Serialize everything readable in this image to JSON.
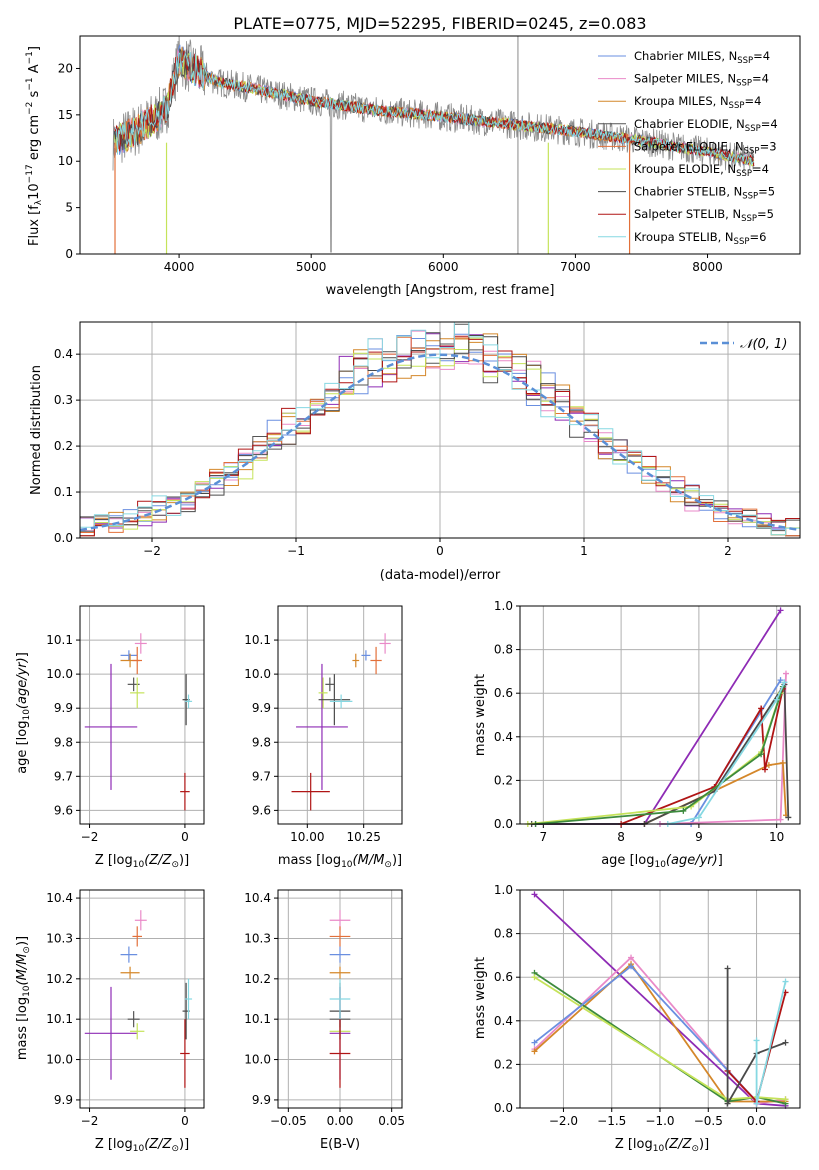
{
  "colors": {
    "chabrier_miles": "#6a8fe0",
    "salpeter_miles": "#e98ac8",
    "kroupa_miles": "#d4872a",
    "chabrier_elodie": "#555555",
    "salpeter_elodie": "#e2703a",
    "kroupa_elodie": "#c5e35a",
    "chabrier_stelib": "#4a4a4a",
    "salpeter_stelib": "#b01515",
    "kroupa_stelib": "#86d8e2",
    "purple": "#8e2bb5",
    "green": "#3d8a3d",
    "gray_spec": "#8a8a8a",
    "normal": "#5a8fd6",
    "grid": "#b0b0b0"
  },
  "chart_data": [
    {
      "type": "line",
      "title": "PLATE=0775, MJD=52295, FIBERID=0245, z=0.083",
      "xlabel": "wavelength [Angstrom, rest frame]",
      "ylabel": "Flux [f_λ10^-17 erg cm^-2 s^-1 A^-1]",
      "xlim": [
        3250,
        8700
      ],
      "ylim": [
        0,
        23.5
      ],
      "xticks": [
        "4000",
        "5000",
        "6000",
        "7000",
        "8000"
      ],
      "yticks": [
        "0",
        "5",
        "10",
        "15",
        "20"
      ],
      "continuum_x": [
        3500,
        3700,
        3900,
        4000,
        4100,
        4300,
        4500,
        5000,
        5500,
        6000,
        6500,
        7000,
        7500,
        8000,
        8350
      ],
      "continuum_y": [
        12,
        13.5,
        15.5,
        21,
        20,
        18.5,
        18,
        16.5,
        15.5,
        14.8,
        14,
        13.2,
        12.2,
        11,
        10
      ],
      "legend": [
        {
          "label": "Chabrier MILES, N",
          "sub": "SSP",
          "tail": "=4",
          "color": "chabrier_miles"
        },
        {
          "label": "Salpeter MILES, N",
          "sub": "SSP",
          "tail": "=4",
          "color": "salpeter_miles"
        },
        {
          "label": "Kroupa MILES, N",
          "sub": "SSP",
          "tail": "=4",
          "color": "kroupa_miles"
        },
        {
          "label": "Chabrier ELODIE, N",
          "sub": "SSP",
          "tail": "=4",
          "color": "chabrier_elodie"
        },
        {
          "label": "Salpeter ELODIE, N",
          "sub": "SSP",
          "tail": "=3",
          "color": "salpeter_elodie"
        },
        {
          "label": "Kroupa ELODIE, N",
          "sub": "SSP",
          "tail": "=4",
          "color": "kroupa_elodie"
        },
        {
          "label": "Chabrier STELIB, N",
          "sub": "SSP",
          "tail": "=5",
          "color": "chabrier_stelib"
        },
        {
          "label": "Salpeter STELIB, N",
          "sub": "SSP",
          "tail": "=5",
          "color": "salpeter_stelib"
        },
        {
          "label": "Kroupa STELIB, N",
          "sub": "SSP",
          "tail": "=6",
          "color": "kroupa_stelib"
        }
      ]
    },
    {
      "type": "histogram",
      "xlabel": "(data-model)/error",
      "ylabel": "Normed distribution",
      "xlim": [
        -2.5,
        2.5
      ],
      "ylim": [
        0,
        0.47
      ],
      "xticks": [
        "−2",
        "−1",
        "0",
        "1",
        "2"
      ],
      "yticks": [
        "0.0",
        "0.1",
        "0.2",
        "0.3",
        "0.4"
      ],
      "legend": "𝒩(0, 1)",
      "bin_width": 0.1
    },
    {
      "type": "scatter",
      "xlabel": "Z [log10(Z/Z⊙)]",
      "ylabel": "age  [log10(age/yr)]",
      "xlim": [
        -2.2,
        0.4
      ],
      "ylim": [
        9.56,
        10.2
      ],
      "xticks": [
        "−2",
        "0"
      ],
      "yticks": [
        "9.6",
        "9.7",
        "9.8",
        "9.9",
        "10.0",
        "10.1"
      ]
    },
    {
      "type": "scatter",
      "xlabel": "mass [log10(M/M⊙)]",
      "xlim": [
        9.87,
        10.42
      ],
      "ylim": [
        9.56,
        10.2
      ],
      "xticks": [
        "10.00",
        "10.25"
      ],
      "yticks": [
        "9.6",
        "9.7",
        "9.8",
        "9.9",
        "10.0",
        "10.1"
      ]
    },
    {
      "type": "line",
      "xlabel": "age  [log10(age/yr)]",
      "ylabel": "mass weight",
      "xlim": [
        6.7,
        10.3
      ],
      "ylim": [
        0,
        1.0
      ],
      "xticks": [
        "7",
        "8",
        "9",
        "10"
      ],
      "yticks": [
        "0.0",
        "0.2",
        "0.4",
        "0.6",
        "0.8",
        "1.0"
      ]
    },
    {
      "type": "scatter",
      "xlabel": "Z [log10(Z/Z⊙)]",
      "ylabel": "mass [log10(M/M⊙)]",
      "xlim": [
        -2.2,
        0.4
      ],
      "ylim": [
        9.88,
        10.42
      ],
      "xticks": [
        "−2",
        "0"
      ],
      "yticks": [
        "9.9",
        "10.0",
        "10.1",
        "10.2",
        "10.3",
        "10.4"
      ]
    },
    {
      "type": "scatter",
      "xlabel": "E(B-V)",
      "xlim": [
        -0.06,
        0.06
      ],
      "ylim": [
        9.88,
        10.42
      ],
      "xticks": [
        "−0.05",
        "0.00",
        "0.05"
      ],
      "yticks": [
        "9.9",
        "10.0",
        "10.1",
        "10.2",
        "10.3",
        "10.4"
      ]
    },
    {
      "type": "line",
      "xlabel": "Z [log10(Z/Z⊙)]",
      "ylabel": "mass weight",
      "xlim": [
        -2.45,
        0.45
      ],
      "ylim": [
        0,
        1.0
      ],
      "xticks": [
        "−2.0",
        "−1.5",
        "−1.0",
        "−0.5",
        "0.0"
      ],
      "yticks": [
        "0.0",
        "0.2",
        "0.4",
        "0.6",
        "0.8",
        "1.0"
      ]
    }
  ],
  "ssp_age": {
    "purple": [
      [
        6.9,
        0.0
      ],
      [
        8.3,
        0.0
      ],
      [
        10.05,
        0.98
      ]
    ],
    "chabrier_miles": [
      [
        8.5,
        0.0
      ],
      [
        8.9,
        0.0
      ],
      [
        10.05,
        0.66
      ]
    ],
    "salpeter_miles": [
      [
        8.5,
        0.0
      ],
      [
        10.05,
        0.02
      ],
      [
        10.12,
        0.69
      ]
    ],
    "kroupa_miles": [
      [
        8.3,
        0.0
      ],
      [
        9.9,
        0.27
      ],
      [
        10.08,
        0.28
      ],
      [
        10.12,
        0.04
      ]
    ],
    "chabrier_stelib": [
      [
        6.85,
        0.0
      ],
      [
        8.3,
        0.0
      ],
      [
        9.2,
        0.15
      ],
      [
        10.1,
        0.64
      ],
      [
        10.15,
        0.03
      ]
    ],
    "salpeter_stelib": [
      [
        8.0,
        0.0
      ],
      [
        9.2,
        0.17
      ],
      [
        9.8,
        0.53
      ],
      [
        9.85,
        0.25
      ],
      [
        10.08,
        0.62
      ]
    ],
    "kroupa_elodie": [
      [
        6.8,
        0.0
      ],
      [
        8.9,
        0.08
      ],
      [
        9.8,
        0.33
      ],
      [
        10.05,
        0.6
      ]
    ],
    "green": [
      [
        6.9,
        0.0
      ],
      [
        8.8,
        0.06
      ],
      [
        9.8,
        0.32
      ],
      [
        10.08,
        0.63
      ]
    ],
    "kroupa_stelib": [
      [
        8.6,
        0.0
      ],
      [
        9.0,
        0.03
      ],
      [
        10.0,
        0.57
      ],
      [
        10.1,
        0.65
      ]
    ]
  },
  "ssp_z": {
    "purple": [
      [
        -2.3,
        0.98
      ],
      [
        0.0,
        0.02
      ],
      [
        0.3,
        0.01
      ]
    ],
    "salpeter_miles": [
      [
        -2.3,
        0.27
      ],
      [
        -1.3,
        0.69
      ],
      [
        0.0,
        0.02
      ],
      [
        0.3,
        0.04
      ]
    ],
    "kroupa_miles": [
      [
        -2.3,
        0.26
      ],
      [
        -1.3,
        0.66
      ],
      [
        -0.3,
        0.03
      ],
      [
        0.3,
        0.03
      ]
    ],
    "green": [
      [
        -2.3,
        0.62
      ],
      [
        -0.3,
        0.03
      ],
      [
        0.0,
        0.05
      ],
      [
        0.3,
        0.02
      ]
    ],
    "kroupa_elodie": [
      [
        -2.3,
        0.6
      ],
      [
        -0.3,
        0.04
      ],
      [
        0.0,
        0.05
      ],
      [
        0.3,
        0.04
      ]
    ],
    "chabrier_miles": [
      [
        -2.3,
        0.3
      ],
      [
        -1.3,
        0.65
      ],
      [
        0.0,
        0.03
      ]
    ],
    "salpeter_stelib": [
      [
        -0.3,
        0.17
      ],
      [
        0.0,
        0.03
      ],
      [
        0.3,
        0.53
      ]
    ],
    "chabrier_stelib": [
      [
        -0.3,
        0.64
      ],
      [
        -0.3,
        0.02
      ],
      [
        0.0,
        0.25
      ],
      [
        0.3,
        0.3
      ]
    ],
    "kroupa_stelib": [
      [
        0.0,
        0.31
      ],
      [
        0.0,
        0.02
      ],
      [
        0.3,
        0.58
      ]
    ]
  },
  "points": [
    {
      "c": "purple",
      "z": [
        -2.1,
        -1.0
      ],
      "age": [
        9.66,
        10.03
      ],
      "mass": [
        9.95,
        10.18
      ],
      "ebv": [
        10.0,
        10.18
      ]
    },
    {
      "c": "chabrier_miles",
      "z": [
        -1.35,
        -1.0
      ],
      "age": [
        10.04,
        10.07
      ],
      "mass": [
        10.24,
        10.28
      ]
    },
    {
      "c": "salpeter_miles",
      "z": [
        -1.05,
        -0.8
      ],
      "age": [
        10.06,
        10.12
      ],
      "mass": [
        10.32,
        10.37
      ]
    },
    {
      "c": "kroupa_miles",
      "z": [
        -1.35,
        -0.95
      ],
      "age": [
        10.02,
        10.06
      ],
      "mass": [
        10.2,
        10.23
      ]
    },
    {
      "c": "chabrier_elodie",
      "z": [
        -1.2,
        -0.95
      ],
      "age": [
        9.95,
        9.99
      ],
      "mass": [
        10.08,
        10.12
      ]
    },
    {
      "c": "salpeter_elodie",
      "z": [
        -1.1,
        -0.9
      ],
      "age": [
        10.0,
        10.08
      ],
      "mass": [
        10.28,
        10.33
      ]
    },
    {
      "c": "kroupa_elodie",
      "z": [
        -1.15,
        -0.85
      ],
      "age": [
        9.9,
        9.99
      ],
      "mass": [
        10.05,
        10.09
      ]
    },
    {
      "c": "chabrier_stelib",
      "z": [
        -0.05,
        0.1
      ],
      "age": [
        9.85,
        10.0
      ],
      "mass": [
        10.05,
        10.19
      ]
    },
    {
      "c": "salpeter_stelib",
      "z": [
        -0.1,
        0.1
      ],
      "age": [
        9.6,
        9.71
      ],
      "mass": [
        9.93,
        10.1
      ]
    },
    {
      "c": "kroupa_stelib",
      "z": [
        0.0,
        0.15
      ],
      "age": [
        9.9,
        9.94
      ],
      "mass": [
        10.1,
        10.2
      ]
    }
  ]
}
